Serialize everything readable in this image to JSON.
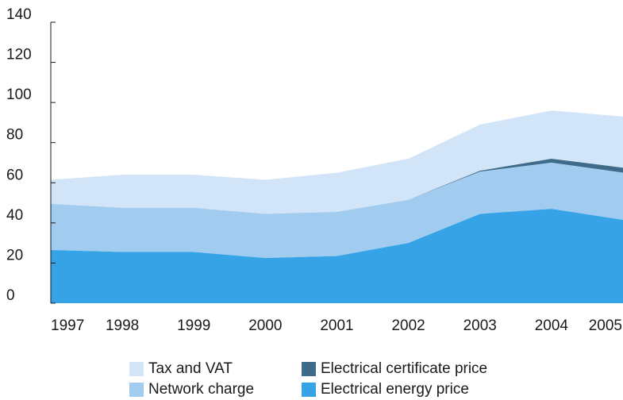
{
  "chart_data": {
    "type": "area",
    "stacked": true,
    "x": [
      "1997",
      "1998",
      "1999",
      "2000",
      "2001",
      "2002",
      "2003",
      "2004",
      "2005"
    ],
    "ylim": [
      0,
      140
    ],
    "yticks": [
      0,
      20,
      40,
      60,
      80,
      100,
      120,
      140
    ],
    "grid": false,
    "legend_position": "bottom",
    "series": [
      {
        "name": "Electrical energy price",
        "color": "#36a3e6",
        "values": [
          26.5,
          25.5,
          25.5,
          22.5,
          23.5,
          30,
          44.5,
          47,
          41.5
        ]
      },
      {
        "name": "Network charge",
        "color": "#a2cbf0",
        "values": [
          23,
          22,
          22,
          22,
          22,
          21.5,
          21,
          23,
          23.5
        ]
      },
      {
        "name": "Electrical certificate price",
        "color": "#3f6b8a",
        "values": [
          0,
          0,
          0,
          0,
          0,
          0,
          0.5,
          2,
          2.5
        ]
      },
      {
        "name": "Tax and VAT",
        "color": "#d2e5f8",
        "values": [
          12,
          16.5,
          16.5,
          17,
          19.5,
          20.5,
          23,
          24,
          25.5
        ]
      }
    ]
  }
}
